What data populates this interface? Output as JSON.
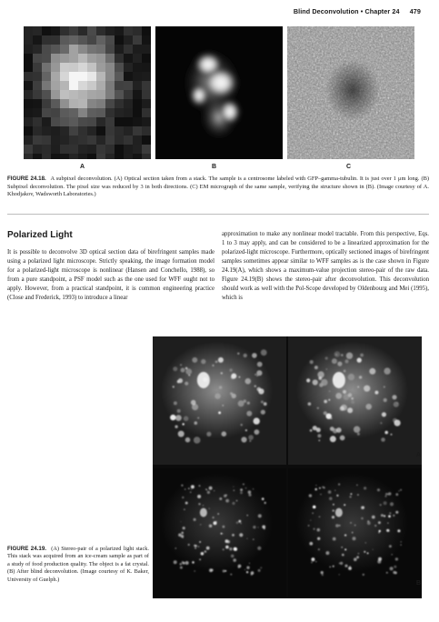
{
  "header": {
    "running_title": "Blind Deconvolution",
    "separator": "•",
    "chapter": "Chapter 24",
    "page_number": "479"
  },
  "figure_24_18": {
    "panel_labels": [
      "A",
      "B",
      "C"
    ],
    "caption_label": "FIGURE 24.18.",
    "caption_text": "A subpixel deconvolution. (A) Optical section taken from a stack. The sample is a centrosome labeled with GFP–gamma-tubulin. It is just over 1 μm long. (B) Subpixel deconvolution. The pixel size was reduced by 3 in both directions. (C) EM micrograph of the same sample, verifying the structure shown in (B). (Image courtesy of A. Khodjakov, Wadsworth Laboratories.)"
  },
  "section": {
    "title": "Polarized Light",
    "left_paragraph": "It is possible to deconvolve 3D optical section data of birefringent samples made using a polarized light microscope. Strictly speaking, the image formation model for a polarized-light microscope is nonlinear (Hansen and Conchello, 1988), so from a pure standpoint, a PSF model such as the one used for WFF ought not to apply. However, from a practical standpoint, it is common engineering practice (Close and Frederick, 1993) to introduce a linear",
    "right_paragraph": "approximation to make any nonlinear model tractable. From this perspective, Eqs. 1 to 3 may apply, and can be considered to be a linearized approximation for the polarized-light microscope. Furthermore, optically sectioned images of birefringent samples sometimes appear similar to WFF samples as is the case shown in Figure 24.19(A), which shows a maximum-value projection stereo-pair of the raw data. Figure 24.19(B) shows the stereo-pair after deconvolution. This deconvolution should work as well with the Pol-Scope developed by Oldenbourg and Mei (1995), which is"
  },
  "figure_24_19": {
    "panel_labels": [
      "A",
      "B"
    ],
    "caption_label": "FIGURE 24.19.",
    "caption_text": "(A) Stereo-pair of a polarized light stack. This stack was acquired from an ice-cream sample as part of a study of food production quality. The object is a fat crystal. (B) After blind deconvolution. (Image courtesy of K. Baker, University of Guelph.)"
  }
}
